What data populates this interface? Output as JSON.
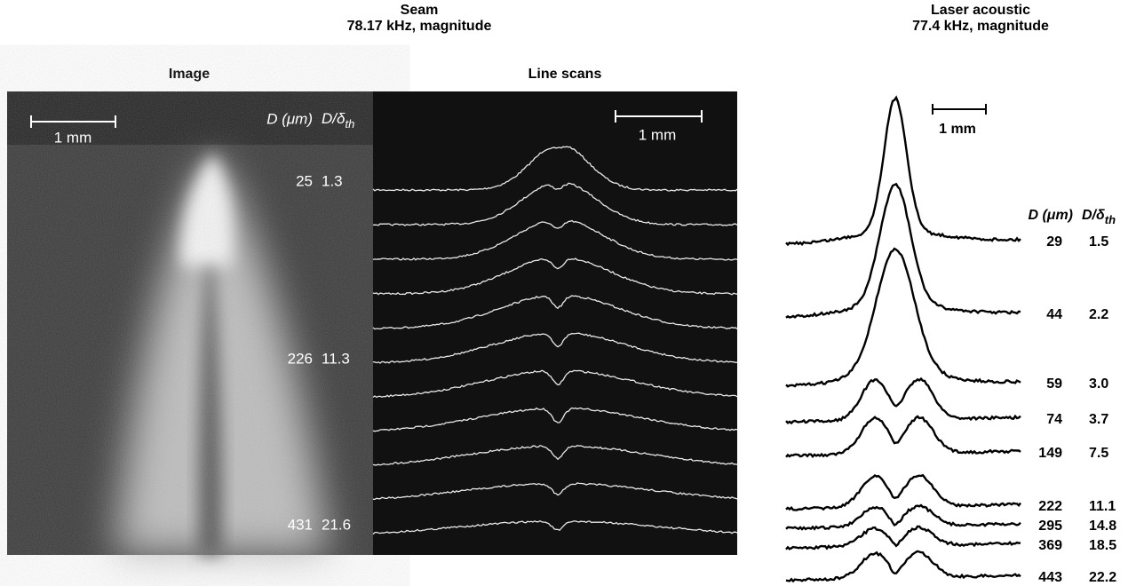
{
  "seam": {
    "title": "Seam",
    "subtitle": "78.17 kHz, magnitude",
    "image_label": "Image",
    "scans_label": "Line scans",
    "image_scale": "1 mm",
    "scans_scale": "1 mm",
    "header": {
      "diameter": "D (μm)",
      "ratio": "D/δ",
      "ratio_sub": "th"
    },
    "rows": [
      [
        "25",
        "1.3"
      ],
      [
        "226",
        "11.3"
      ],
      [
        "431",
        "21.6"
      ]
    ]
  },
  "laser": {
    "title": "Laser acoustic",
    "subtitle": "77.4 kHz, magnitude",
    "scale": "1 mm",
    "header": {
      "diameter": "D (μm)",
      "ratio": "D/δ",
      "ratio_sub": "th"
    },
    "rows": [
      [
        "29",
        "1.5"
      ],
      [
        "44",
        "2.2"
      ],
      [
        "59",
        "3.0"
      ],
      [
        "74",
        "3.7"
      ],
      [
        "149",
        "7.5"
      ],
      [
        "222",
        "11.1"
      ],
      [
        "295",
        "14.8"
      ],
      [
        "369",
        "18.5"
      ],
      [
        "443",
        "22.2"
      ]
    ]
  }
}
